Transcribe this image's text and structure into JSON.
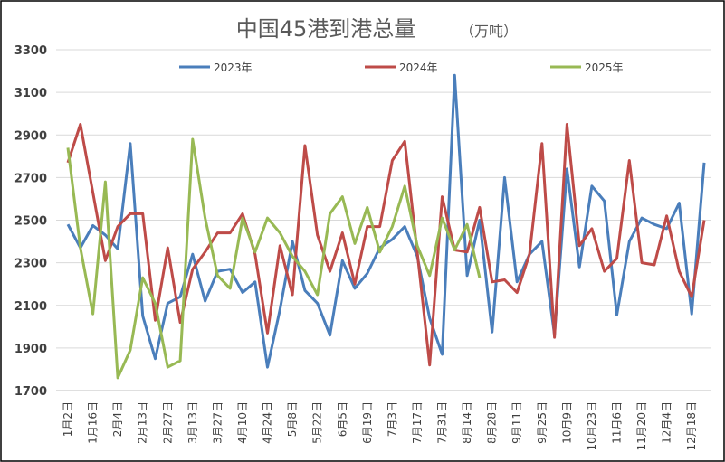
{
  "chart_data": {
    "type": "line",
    "title": "中国45港到港总量",
    "subtitle": "（万吨）",
    "categories": [
      "1月2日",
      null,
      "1月16日",
      null,
      "2月4日",
      null,
      "2月13日",
      null,
      "2月27日",
      null,
      "3月13日",
      null,
      "3月27日",
      null,
      "4月10日",
      null,
      "4月24日",
      null,
      "5月8日",
      null,
      "5月22日",
      null,
      "6月5日",
      null,
      "6月19日",
      null,
      "7月3日",
      null,
      "7月17日",
      null,
      "7月31日",
      null,
      "8月14日",
      null,
      "8月28日",
      null,
      "9月11日",
      null,
      "9月25日",
      null,
      "10月9日",
      null,
      "10月23日",
      null,
      "11月6日",
      null,
      "11月20日",
      null,
      "12月4日",
      null,
      "12月18日",
      null
    ],
    "series": [
      {
        "name": "2023年",
        "color": "#4a7ebb",
        "values": [
          2480,
          2370,
          2475,
          2430,
          2365,
          2860,
          2050,
          1850,
          2110,
          2140,
          2340,
          2120,
          2260,
          2270,
          2160,
          2210,
          1810,
          2080,
          2400,
          2170,
          2110,
          1960,
          2310,
          2180,
          2250,
          2370,
          2410,
          2470,
          2330,
          2040,
          1870,
          3180,
          2240,
          2500,
          1975,
          2700,
          2210,
          2340,
          2400,
          1960,
          2740,
          2280,
          2660,
          2590,
          2055,
          2400,
          2510,
          2480,
          2460,
          2580,
          2060,
          2770
        ]
      },
      {
        "name": "2024年",
        "color": "#be4b48",
        "values": [
          2770,
          2950,
          2630,
          2310,
          2470,
          2530,
          2530,
          2030,
          2370,
          2020,
          2270,
          2350,
          2440,
          2440,
          2530,
          2340,
          1970,
          2380,
          2150,
          2850,
          2430,
          2260,
          2440,
          2200,
          2470,
          2470,
          2780,
          2870,
          2350,
          1820,
          2610,
          2360,
          2350,
          2560,
          2210,
          2220,
          2160,
          2340,
          2860,
          1950,
          2950,
          2380,
          2460,
          2260,
          2320,
          2780,
          2300,
          2290,
          2520,
          2260,
          2140,
          2500
        ]
      },
      {
        "name": "2025年",
        "color": "#98b954",
        "values": [
          2840,
          2370,
          2060,
          2680,
          1760,
          1890,
          2230,
          2110,
          1810,
          1840,
          2880,
          2510,
          2240,
          2180,
          2510,
          2350,
          2510,
          2440,
          2330,
          2260,
          2150,
          2530,
          2610,
          2390,
          2560,
          2350,
          2470,
          2660,
          2380,
          2240,
          2510,
          2360,
          2480,
          2230,
          null,
          null,
          null,
          null,
          null,
          null,
          null,
          null,
          null,
          null,
          null,
          null,
          null,
          null,
          null,
          null,
          null,
          null
        ]
      }
    ],
    "ylim": [
      1700,
      3300
    ],
    "yticks": [
      1700,
      1900,
      2100,
      2300,
      2500,
      2700,
      2900,
      3100,
      3300
    ],
    "grid": true,
    "legend": "top"
  }
}
